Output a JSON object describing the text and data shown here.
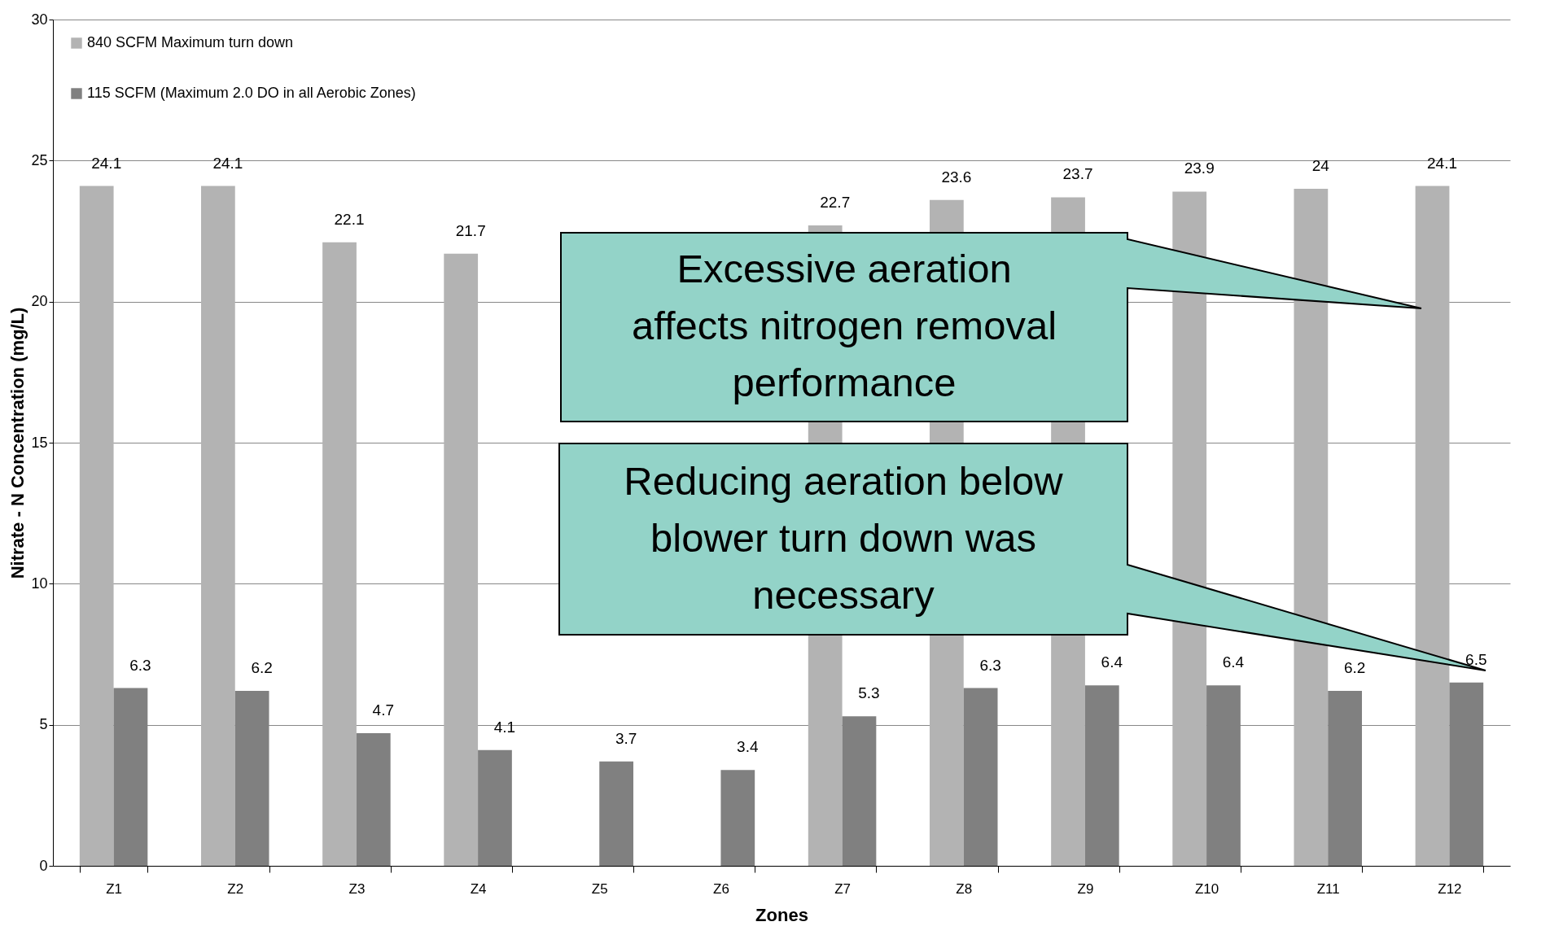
{
  "chart_data": {
    "type": "bar",
    "xlabel": "Zones",
    "ylabel": "Nitrate - N Concentration (mg/L)",
    "categories": [
      "Z1",
      "Z2",
      "Z3",
      "Z4",
      "Z5",
      "Z6",
      "Z7",
      "Z8",
      "Z9",
      "Z10",
      "Z11",
      "Z12"
    ],
    "series": [
      {
        "name": "840 SCFM Maximum  turn down",
        "color": "#b3b3b3",
        "values": [
          24.1,
          24.1,
          22.1,
          21.7,
          null,
          null,
          22.7,
          23.6,
          23.7,
          23.9,
          24,
          24.1
        ]
      },
      {
        "name": "115 SCFM (Maximum  2.0 DO in all Aerobic Zones)",
        "color": "#808080",
        "values": [
          6.3,
          6.2,
          4.7,
          4.1,
          3.7,
          3.4,
          5.3,
          6.3,
          6.4,
          6.4,
          6.2,
          6.5
        ]
      }
    ],
    "ylim": [
      0,
      30
    ],
    "yticks": [
      0,
      5,
      10,
      15,
      20,
      25,
      30
    ],
    "grid": "y",
    "legend": "top left",
    "data_labels": true,
    "annotations": [
      "Excessive aeration affects nitrogen removal performance",
      "Reducing aeration below blower turn down was necessary"
    ]
  }
}
